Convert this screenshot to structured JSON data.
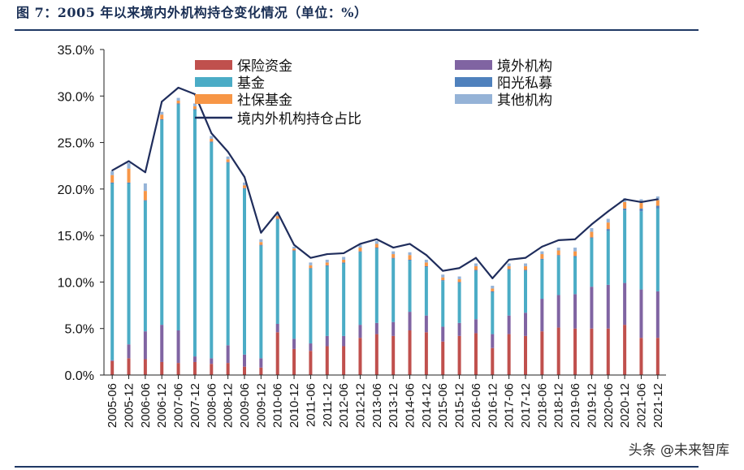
{
  "header": {
    "title": "图 7：2005 年以来境内外机构持仓变化情况（单位：%）"
  },
  "watermark": "头条 @未来智库",
  "chart_data": {
    "type": "bar",
    "stacked": true,
    "title": "图 7：2005 年以来境内外机构持仓变化情况（单位：%）",
    "xlabel": "",
    "ylabel": "",
    "ylim": [
      0,
      35
    ],
    "yticks": [
      "0.0%",
      "5.0%",
      "10.0%",
      "15.0%",
      "20.0%",
      "25.0%",
      "30.0%",
      "35.0%"
    ],
    "legend_position": "top",
    "categories": [
      "2005-06",
      "2005-12",
      "2006-06",
      "2006-12",
      "2007-06",
      "2007-12",
      "2008-06",
      "2008-12",
      "2009-06",
      "2009-12",
      "2010-06",
      "2010-12",
      "2011-06",
      "2011-12",
      "2012-06",
      "2012-12",
      "2013-06",
      "2013-12",
      "2014-06",
      "2014-12",
      "2015-06",
      "2015-12",
      "2016-06",
      "2016-12",
      "2017-06",
      "2017-12",
      "2018-06",
      "2018-12",
      "2019-06",
      "2019-12",
      "2020-06",
      "2020-12",
      "2021-06",
      "2021-12"
    ],
    "series": [
      {
        "name": "保险资金",
        "color": "#c0504d",
        "values": [
          1.5,
          1.8,
          1.7,
          1.4,
          1.3,
          1.4,
          1.2,
          1.3,
          0.9,
          0.8,
          4.6,
          2.8,
          2.6,
          3.1,
          3.1,
          4.0,
          4.4,
          4.2,
          4.8,
          4.6,
          3.6,
          4.2,
          4.5,
          2.9,
          4.4,
          4.2,
          4.7,
          5.1,
          5.0,
          5.0,
          5.0,
          5.4,
          4.0,
          4.0
        ]
      },
      {
        "name": "境外机构",
        "color": "#8064a2",
        "values": [
          0.1,
          1.5,
          3.0,
          4.0,
          3.5,
          0.6,
          0.6,
          1.9,
          1.3,
          1.0,
          0.9,
          1.1,
          0.8,
          1.1,
          1.1,
          1.4,
          1.2,
          1.5,
          2.0,
          1.8,
          1.6,
          1.4,
          1.5,
          1.5,
          2.0,
          2.5,
          3.5,
          3.5,
          3.7,
          4.5,
          4.7,
          4.5,
          5.2,
          5.0
        ]
      },
      {
        "name": "基金",
        "color": "#4bacc6",
        "values": [
          19.0,
          17.3,
          14.0,
          22.0,
          24.3,
          26.5,
          23.2,
          19.6,
          17.8,
          12.1,
          11.2,
          9.4,
          8.0,
          7.5,
          7.8,
          7.8,
          8.0,
          6.8,
          5.5,
          5.2,
          4.9,
          4.3,
          5.2,
          4.5,
          4.9,
          4.5,
          4.2,
          4.2,
          4.0,
          5.2,
          5.8,
          7.8,
          8.4,
          8.9
        ]
      },
      {
        "name": "阳光私募",
        "color": "#4f81bd",
        "values": [
          0.1,
          0.1,
          0.1,
          0.1,
          0.1,
          0.1,
          0.1,
          0.1,
          0.1,
          0.1,
          0.1,
          0.1,
          0.1,
          0.1,
          0.1,
          0.1,
          0.1,
          0.1,
          0.1,
          0.1,
          0.1,
          0.1,
          0.1,
          0.1,
          0.1,
          0.1,
          0.1,
          0.1,
          0.1,
          0.1,
          0.2,
          0.2,
          0.3,
          0.3
        ]
      },
      {
        "name": "社保基金",
        "color": "#f79646",
        "values": [
          0.8,
          1.5,
          1.0,
          0.5,
          0.3,
          0.3,
          0.3,
          0.3,
          0.3,
          0.3,
          0.3,
          0.2,
          0.3,
          0.3,
          0.3,
          0.4,
          0.4,
          0.4,
          0.5,
          0.4,
          0.3,
          0.3,
          0.4,
          0.3,
          0.3,
          0.4,
          0.5,
          0.5,
          0.5,
          0.6,
          0.7,
          0.7,
          0.6,
          0.6
        ]
      },
      {
        "name": "其他机构",
        "color": "#95b3d7",
        "values": [
          0.4,
          0.6,
          0.8,
          0.3,
          0.3,
          0.3,
          0.3,
          0.3,
          0.3,
          0.3,
          0.3,
          0.2,
          0.3,
          0.3,
          0.3,
          0.3,
          0.3,
          0.3,
          0.3,
          0.3,
          0.3,
          0.3,
          0.3,
          0.3,
          0.3,
          0.3,
          0.3,
          0.3,
          0.4,
          0.4,
          0.4,
          0.4,
          0.4,
          0.4
        ]
      }
    ],
    "line": {
      "name": "境内外机构持仓占比",
      "color": "#1f2d5c",
      "values": [
        22.0,
        23.0,
        21.8,
        29.4,
        30.9,
        30.2,
        26.0,
        24.0,
        21.3,
        15.3,
        17.5,
        14.0,
        12.6,
        13.0,
        13.1,
        14.1,
        14.6,
        13.7,
        14.1,
        12.9,
        11.2,
        11.5,
        12.6,
        10.4,
        12.4,
        12.6,
        13.8,
        14.5,
        14.6,
        16.2,
        17.6,
        18.9,
        18.6,
        18.9
      ]
    }
  }
}
